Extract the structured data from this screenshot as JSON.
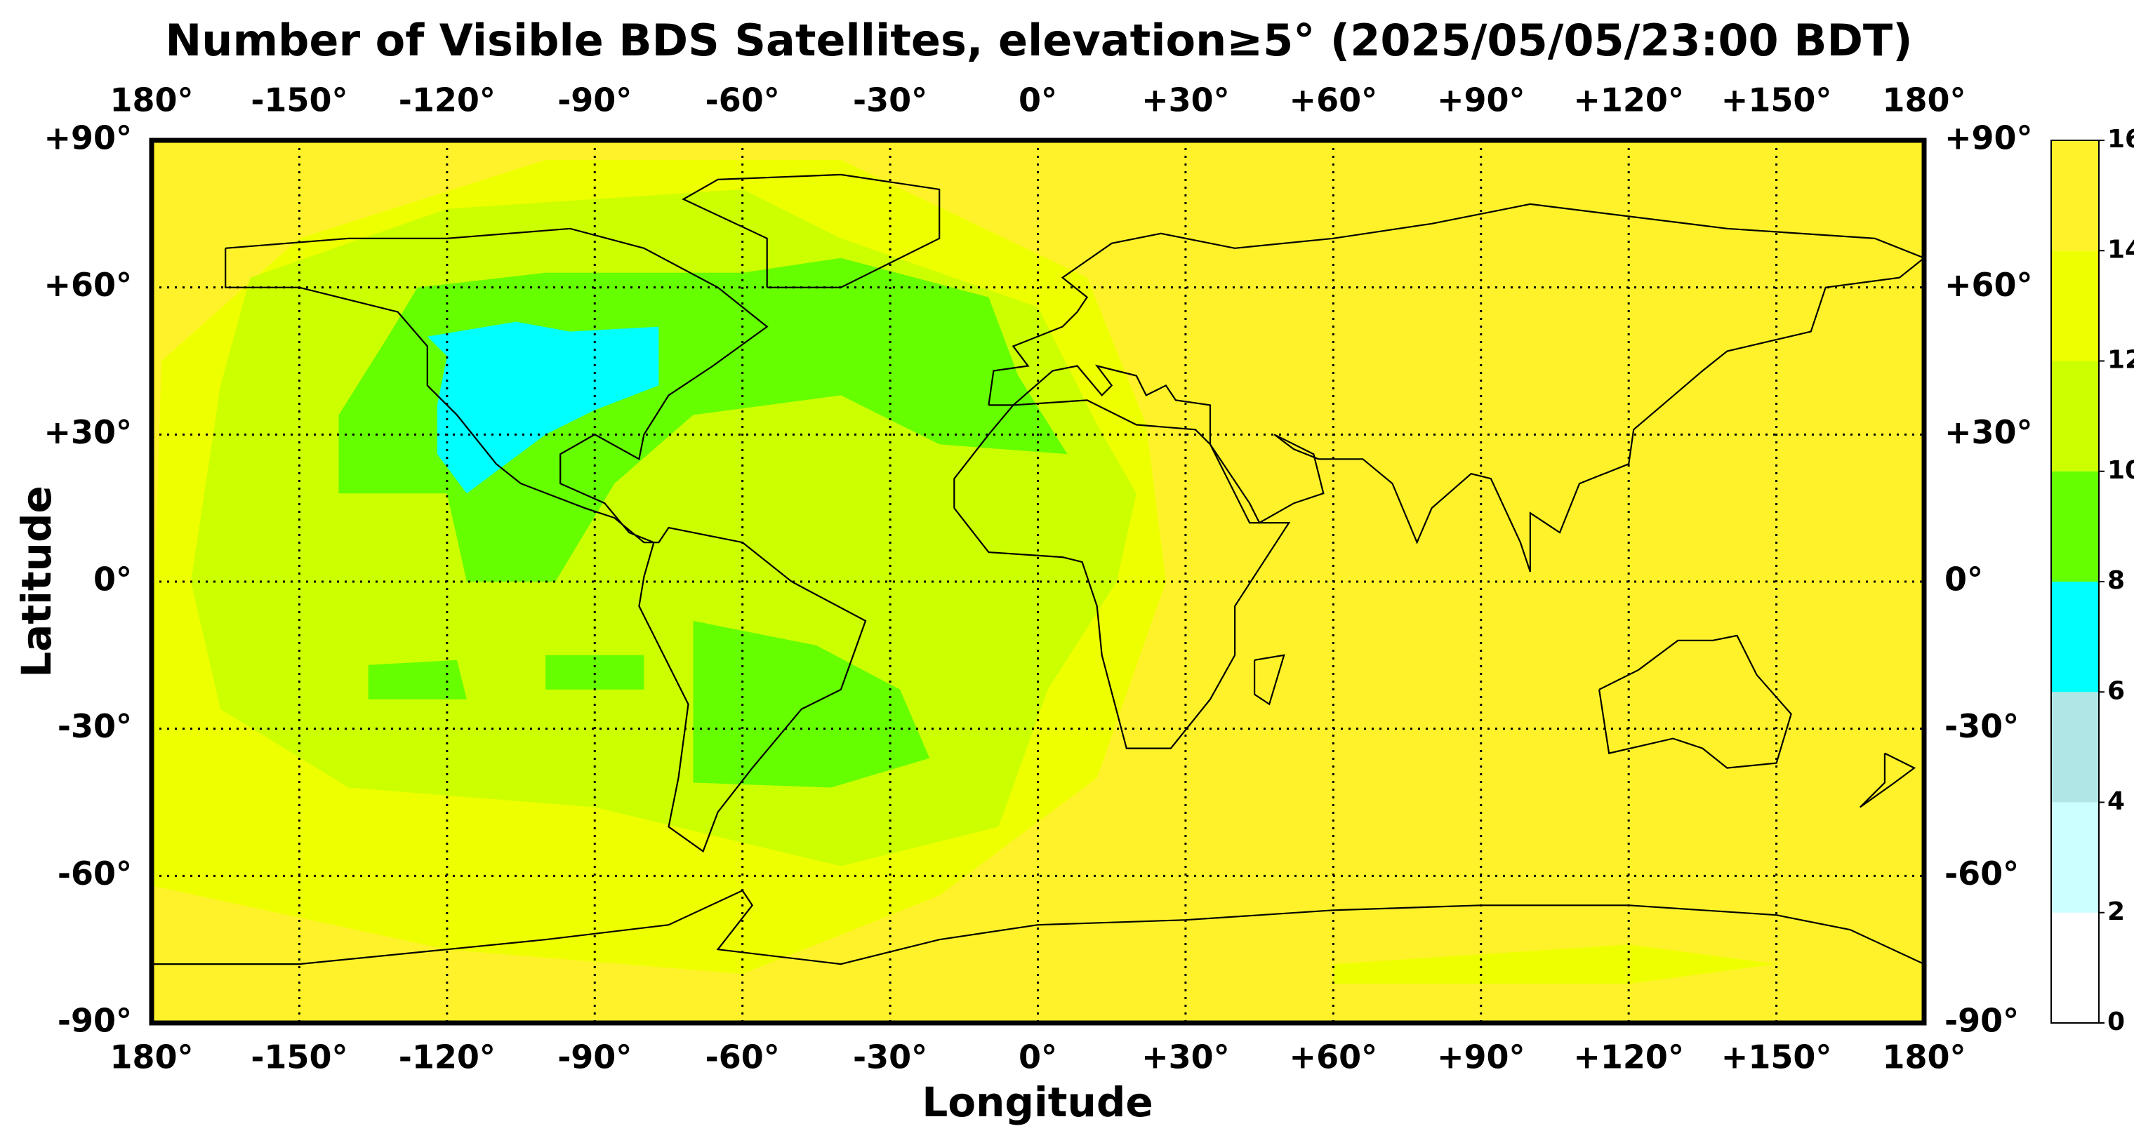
{
  "chart_data": {
    "type": "heatmap-map",
    "title": "Number of Visible BDS Satellites, elevation≥5° (2025/05/05/23:00 BDT)",
    "xlabel": "Longitude",
    "ylabel": "Latitude",
    "xlim": [
      -180,
      180
    ],
    "ylim": [
      -90,
      90
    ],
    "xticks": [
      {
        "value": -180,
        "label": "180°"
      },
      {
        "value": -150,
        "label": "-150°"
      },
      {
        "value": -120,
        "label": "-120°"
      },
      {
        "value": -90,
        "label": "-90°"
      },
      {
        "value": -60,
        "label": "-60°"
      },
      {
        "value": -30,
        "label": "-30°"
      },
      {
        "value": 0,
        "label": "0°"
      },
      {
        "value": 30,
        "label": "+30°"
      },
      {
        "value": 60,
        "label": "+60°"
      },
      {
        "value": 90,
        "label": "+90°"
      },
      {
        "value": 120,
        "label": "+120°"
      },
      {
        "value": 150,
        "label": "+150°"
      },
      {
        "value": 180,
        "label": "180°"
      }
    ],
    "yticks": [
      {
        "value": -90,
        "label": "-90°"
      },
      {
        "value": -60,
        "label": "-60°"
      },
      {
        "value": -30,
        "label": "-30°"
      },
      {
        "value": 0,
        "label": "0°"
      },
      {
        "value": 30,
        "label": "+30°"
      },
      {
        "value": 60,
        "label": "+60°"
      },
      {
        "value": 90,
        "label": "+90°"
      }
    ],
    "grid": true,
    "colorbar": {
      "bins": [
        0,
        2,
        4,
        6,
        8,
        10,
        12,
        14,
        16
      ],
      "colors": [
        "#ffffff",
        "#ccffff",
        "#b0e6e6",
        "#00ffff",
        "#66ff00",
        "#ccff00",
        "#eeff00",
        "#fff22a"
      ]
    }
  }
}
